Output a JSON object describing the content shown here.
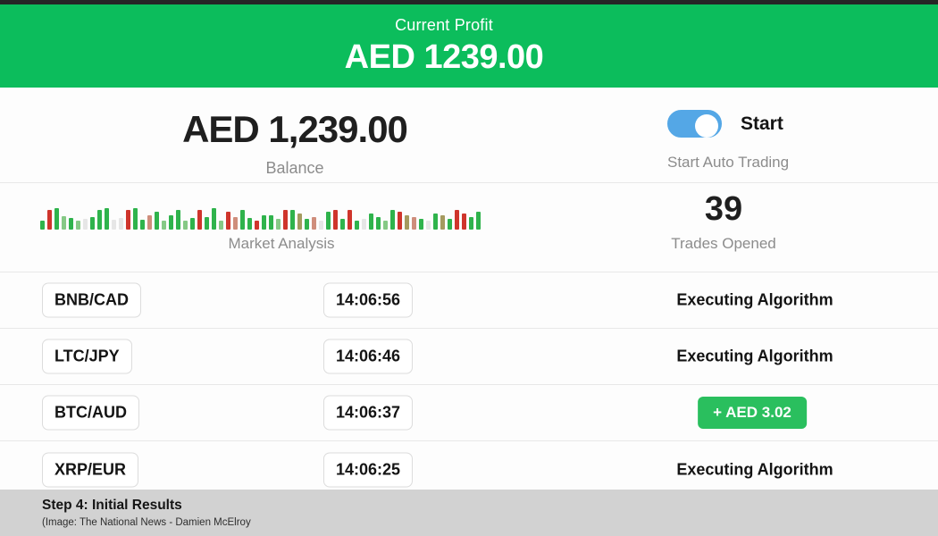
{
  "banner": {
    "label": "Current Profit",
    "amount": "AED 1239.00"
  },
  "account": {
    "balance": "AED 1,239.00",
    "balance_label": "Balance",
    "toggle_label": "Start",
    "toggle_sublabel": "Start Auto Trading",
    "toggle_state": "on"
  },
  "market": {
    "label": "Market Analysis",
    "trades_count": "39",
    "trades_label": "Trades Opened",
    "bars": [
      [
        10,
        "g"
      ],
      [
        22,
        "r"
      ],
      [
        24,
        "g"
      ],
      [
        15,
        "G"
      ],
      [
        13,
        "g"
      ],
      [
        10,
        "G"
      ],
      [
        12,
        "f"
      ],
      [
        14,
        "g"
      ],
      [
        22,
        "g"
      ],
      [
        24,
        "g"
      ],
      [
        11,
        "f"
      ],
      [
        13,
        "f"
      ],
      [
        22,
        "r"
      ],
      [
        24,
        "g"
      ],
      [
        11,
        "g"
      ],
      [
        16,
        "R"
      ],
      [
        20,
        "g"
      ],
      [
        10,
        "G"
      ],
      [
        16,
        "g"
      ],
      [
        22,
        "g"
      ],
      [
        10,
        "G"
      ],
      [
        13,
        "g"
      ],
      [
        22,
        "r"
      ],
      [
        14,
        "g"
      ],
      [
        24,
        "g"
      ],
      [
        10,
        "G"
      ],
      [
        20,
        "r"
      ],
      [
        14,
        "R"
      ],
      [
        22,
        "g"
      ],
      [
        13,
        "g"
      ],
      [
        10,
        "r"
      ],
      [
        16,
        "g"
      ],
      [
        16,
        "g"
      ],
      [
        12,
        "G"
      ],
      [
        22,
        "r"
      ],
      [
        22,
        "g"
      ],
      [
        18,
        "o"
      ],
      [
        12,
        "g"
      ],
      [
        14,
        "R"
      ],
      [
        10,
        "f"
      ],
      [
        20,
        "g"
      ],
      [
        22,
        "r"
      ],
      [
        12,
        "g"
      ],
      [
        22,
        "r"
      ],
      [
        10,
        "g"
      ],
      [
        12,
        "f"
      ],
      [
        18,
        "g"
      ],
      [
        14,
        "g"
      ],
      [
        10,
        "G"
      ],
      [
        22,
        "g"
      ],
      [
        20,
        "r"
      ],
      [
        16,
        "o"
      ],
      [
        14,
        "R"
      ],
      [
        12,
        "g"
      ],
      [
        10,
        "f"
      ],
      [
        18,
        "g"
      ],
      [
        16,
        "o"
      ],
      [
        12,
        "g"
      ],
      [
        22,
        "r"
      ],
      [
        18,
        "r"
      ],
      [
        14,
        "g"
      ],
      [
        20,
        "g"
      ]
    ]
  },
  "trades": [
    {
      "pair": "BNB/CAD",
      "time": "14:06:56",
      "status": "Executing Algorithm"
    },
    {
      "pair": "LTC/JPY",
      "time": "14:06:46",
      "status": "Executing Algorithm"
    },
    {
      "pair": "BTC/AUD",
      "time": "14:06:37",
      "status": "+ AED 3.02"
    },
    {
      "pair": "XRP/EUR",
      "time": "14:06:25",
      "status": "Executing Algorithm"
    }
  ],
  "caption": {
    "title": "Step 4: Initial Results",
    "credit": "(Image:  The National News - Damien McElroy"
  },
  "colors": {
    "banner_green": "#0cbd5c",
    "badge_green": "#2abf5e",
    "toggle_blue": "#54a7e6",
    "bar_palette": {
      "g": "#2fb34c",
      "G": "#86c986",
      "r": "#cf352c",
      "R": "#cf8e7c",
      "o": "#a59a5f",
      "f": "#e6e6e6"
    }
  }
}
